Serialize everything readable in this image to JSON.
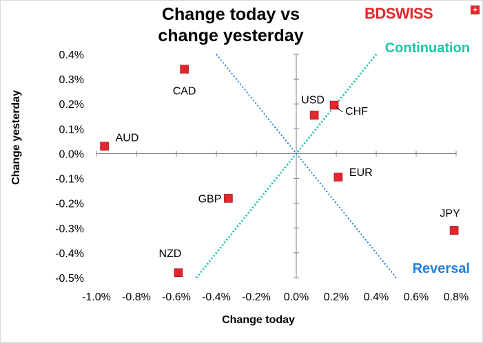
{
  "chart_data": {
    "type": "scatter",
    "title": "Change today vs change yesterday",
    "title_lines": [
      "Change today vs",
      "change yesterday"
    ],
    "xlabel": "Change today",
    "ylabel": "Change yesterday",
    "xlim": [
      -1.0,
      0.8
    ],
    "ylim": [
      -0.5,
      0.4
    ],
    "x_ticks": [
      -1.0,
      -0.8,
      -0.6,
      -0.4,
      -0.2,
      0.0,
      0.2,
      0.4,
      0.6,
      0.8
    ],
    "x_tick_labels": [
      "-1.0%",
      "-0.8%",
      "-0.6%",
      "-0.4%",
      "-0.2%",
      "0.0%",
      "0.2%",
      "0.4%",
      "0.6%",
      "0.8%"
    ],
    "y_ticks": [
      0.4,
      0.3,
      0.2,
      0.1,
      0.0,
      -0.1,
      -0.2,
      -0.3,
      -0.4,
      -0.5
    ],
    "y_tick_labels": [
      "0.4%",
      "0.3%",
      "0.2%",
      "0.1%",
      "0.0%",
      "-0.1%",
      "-0.2%",
      "-0.3%",
      "-0.4%",
      "-0.5%"
    ],
    "grid": false,
    "marker_color": "#e3262e",
    "points": [
      {
        "label": "CAD",
        "x": -0.56,
        "y": 0.34
      },
      {
        "label": "AUD",
        "x": -0.96,
        "y": 0.03
      },
      {
        "label": "USD",
        "x": 0.09,
        "y": 0.155
      },
      {
        "label": "CHF",
        "x": 0.19,
        "y": 0.195
      },
      {
        "label": "EUR",
        "x": 0.21,
        "y": -0.095
      },
      {
        "label": "GBP",
        "x": -0.34,
        "y": -0.18
      },
      {
        "label": "NZD",
        "x": -0.59,
        "y": -0.48
      },
      {
        "label": "JPY",
        "x": 0.79,
        "y": -0.31
      }
    ],
    "reference_lines": [
      {
        "name": "Continuation",
        "color": "#1cc7a8",
        "from": [
          -0.5,
          -0.5
        ],
        "to": [
          0.4,
          0.4
        ]
      },
      {
        "name": "Reversal",
        "color": "#1f7fdc",
        "from": [
          -0.4,
          0.4
        ],
        "to": [
          0.5,
          -0.5
        ]
      }
    ]
  },
  "branding": {
    "logo_text": "BDSWISS",
    "logo_mark": "+",
    "logo_color": "#e0262b"
  }
}
